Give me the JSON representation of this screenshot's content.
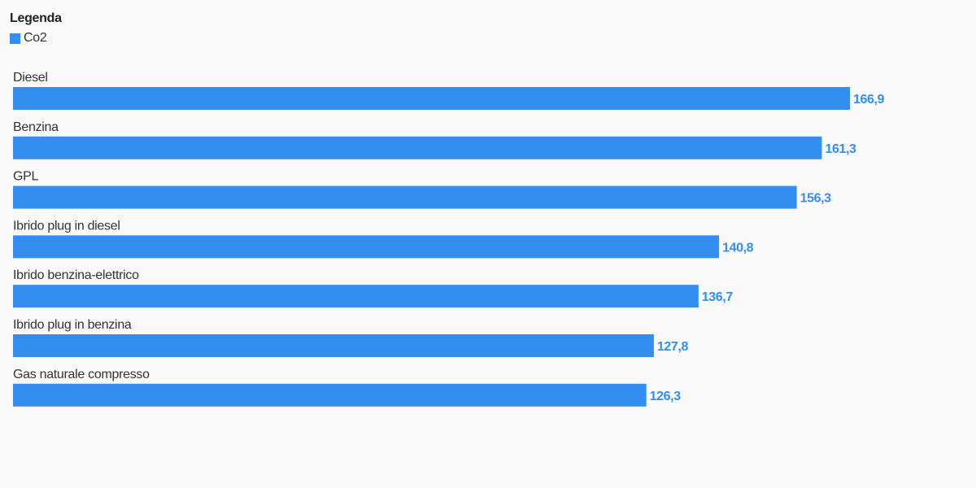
{
  "legend": {
    "title": "Legenda",
    "series_label": "Co2"
  },
  "colors": {
    "bar": "#338ef0",
    "value_label": "#338ef0",
    "category_label": "#333333"
  },
  "chart_data": {
    "type": "bar",
    "orientation": "horizontal",
    "categories": [
      "Diesel",
      "Benzina",
      "GPL",
      "Ibrido plug in diesel",
      "Ibrido benzina-elettrico",
      "Ibrido plug in benzina",
      "Gas naturale compresso"
    ],
    "series": [
      {
        "name": "Co2",
        "values": [
          166.9,
          161.3,
          156.3,
          140.8,
          136.7,
          127.8,
          126.3
        ],
        "labels": [
          "166,9",
          "161,3",
          "156,3",
          "140,8",
          "136,7",
          "127,8",
          "126,3"
        ]
      }
    ],
    "xlim": [
      0,
      166.9
    ],
    "grid": false,
    "legend_position": "top-left",
    "title": "",
    "xlabel": "",
    "ylabel": ""
  }
}
